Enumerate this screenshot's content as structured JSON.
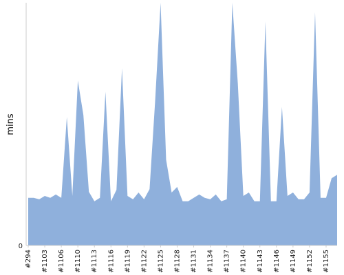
{
  "chart_data": {
    "type": "area",
    "ylabel": "mins",
    "y_tick_labels": [
      "0"
    ],
    "color": "#8fb0dc",
    "axis_color": "#cccccc",
    "x_tick_labels": [
      "#294",
      "#1103",
      "#1106",
      "#1110",
      "#1113",
      "#1116",
      "#1119",
      "#1122",
      "#1125",
      "#1128",
      "#1131",
      "#1134",
      "#1137",
      "#1140",
      "#1143",
      "#1146",
      "#1149",
      "#1152",
      "#1155"
    ],
    "ylim": [
      0,
      100
    ],
    "values": [
      19.6,
      19.6,
      19.0,
      20.4,
      19.6,
      21.0,
      19.6,
      52.9,
      20.4,
      67.9,
      53.8,
      22.1,
      18.2,
      19.6,
      63.3,
      18.2,
      22.9,
      73.0,
      20.4,
      19.0,
      21.8,
      19.0,
      23.2,
      59.1,
      100.0,
      35.3,
      21.8,
      24.1,
      18.2,
      18.2,
      19.6,
      21.0,
      19.6,
      19.0,
      21.0,
      18.2,
      19.0,
      100.0,
      66.7,
      20.4,
      21.8,
      18.2,
      18.2,
      92.2,
      18.2,
      18.2,
      57.1,
      20.4,
      21.8,
      19.0,
      19.0,
      21.8,
      96.1,
      19.6,
      19.6,
      27.7,
      29.1
    ]
  }
}
